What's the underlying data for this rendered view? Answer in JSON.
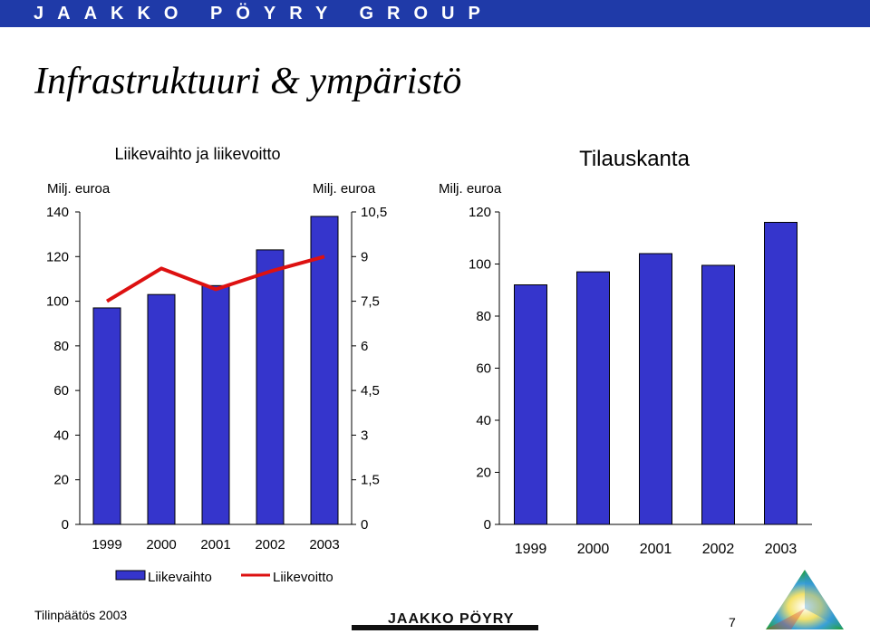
{
  "header": {
    "brand": "JAAKKO PÖYRY GROUP",
    "brand_color": "#1f3aa8"
  },
  "page": {
    "title": "Infrastruktuuri & ympäristö",
    "footer": "Tilinpäätös 2003",
    "page_number": "7"
  },
  "logo": {
    "text": "JAAKKO PÖYRY",
    "icon": "triangle-logo-icon"
  },
  "chart_data": [
    {
      "type": "bar",
      "title": "Liikevaihto ja liikevoitto",
      "categories": [
        "1999",
        "2000",
        "2001",
        "2002",
        "2003"
      ],
      "series": [
        {
          "name": "Liikevaihto",
          "type": "bar",
          "axis": "left",
          "color": "#3535cc",
          "values": [
            97,
            103,
            107,
            123,
            138
          ]
        },
        {
          "name": "Liikevoitto",
          "type": "line",
          "axis": "right",
          "color": "#dd1111",
          "values": [
            7.5,
            8.6,
            7.9,
            8.5,
            9.0
          ]
        }
      ],
      "y_left": {
        "unit": "Milj. euroa",
        "range": [
          0,
          140
        ],
        "ticks": [
          "0",
          "20",
          "40",
          "60",
          "80",
          "100",
          "120",
          "140"
        ]
      },
      "y_right": {
        "unit": "Milj. euroa",
        "range": [
          0,
          10.5
        ],
        "ticks": [
          "0",
          "1,5",
          "3",
          "4,5",
          "6",
          "7,5",
          "9",
          "10,5"
        ]
      },
      "legend": "bottom"
    },
    {
      "type": "bar",
      "title": "Tilauskanta",
      "categories": [
        "1999",
        "2000",
        "2001",
        "2002",
        "2003"
      ],
      "series": [
        {
          "name": "Tilauskanta",
          "color": "#3535cc",
          "values": [
            92,
            97,
            104,
            99.5,
            116
          ]
        }
      ],
      "y_left": {
        "unit": "Milj. euroa",
        "range": [
          0,
          120
        ],
        "ticks": [
          "0",
          "20",
          "40",
          "60",
          "80",
          "100",
          "120"
        ]
      }
    }
  ]
}
